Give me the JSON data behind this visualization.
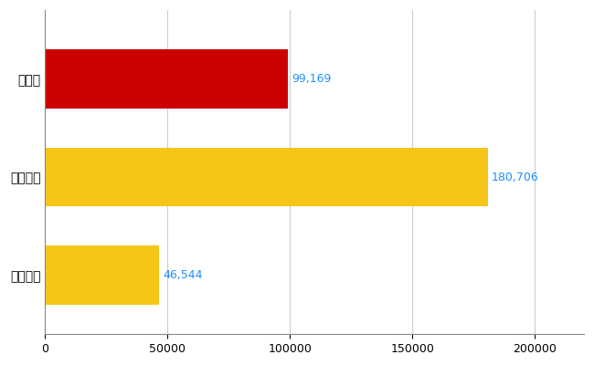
{
  "categories": [
    "全国平均",
    "全国最大",
    "福岡県"
  ],
  "values": [
    46544,
    180706,
    99169
  ],
  "bar_colors": [
    "#F5C518",
    "#F5C518",
    "#CC0000"
  ],
  "value_labels": [
    "46,544",
    "180,706",
    "99,169"
  ],
  "xlim": [
    0,
    220000
  ],
  "xticks": [
    0,
    50000,
    100000,
    150000,
    200000
  ],
  "xtick_labels": [
    "0",
    "50000",
    "100000",
    "150000",
    "200000"
  ],
  "background_color": "#ffffff",
  "grid_color": "#cccccc",
  "label_color": "#1E90FF",
  "bar_height": 0.6,
  "figsize": [
    6.5,
    4.0
  ],
  "dpi": 100
}
